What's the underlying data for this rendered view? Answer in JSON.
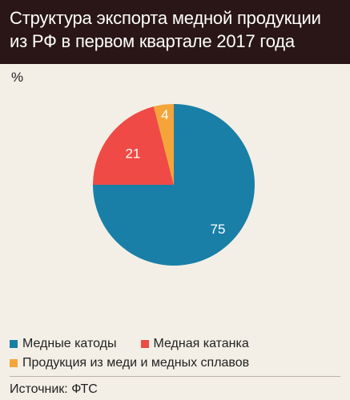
{
  "chart_data": {
    "type": "pie",
    "title": "Структура экспорта медной продукции\nиз РФ в первом квартале 2017 года",
    "unit": "%",
    "slices": [
      {
        "label": "Медные катоды",
        "value": 75,
        "color": "#1a7fa6"
      },
      {
        "label": "Медная катанка",
        "value": 21,
        "color": "#ef4a45"
      },
      {
        "label": "Продукция из меди и медных сплавов",
        "value": 4,
        "color": "#f5a43a"
      }
    ],
    "legend_position": "bottom"
  },
  "source": "Источник: ФТС"
}
